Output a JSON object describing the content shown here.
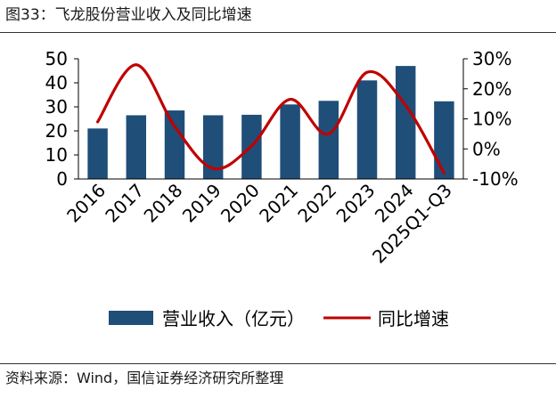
{
  "title": "图33：飞龙股份营业收入及同比增速",
  "source": "资料来源：Wind，国信证券经济研究所整理",
  "colors": {
    "bar": "#1f4e79",
    "line": "#c00000"
  },
  "chart_data": {
    "type": "bar+line",
    "categories": [
      "2016",
      "2017",
      "2018",
      "2019",
      "2020",
      "2021",
      "2022",
      "2023",
      "2024",
      "2025Q1-Q3"
    ],
    "series": [
      {
        "name": "营业收入（亿元）",
        "type": "bar",
        "axis": "left",
        "values": [
          21,
          26.5,
          28.5,
          26.5,
          26.7,
          31,
          32.5,
          41,
          47,
          32.3
        ]
      },
      {
        "name": "同比增速",
        "type": "line",
        "axis": "right",
        "values": [
          9,
          28,
          7.5,
          -6.5,
          1,
          16.5,
          5,
          25.5,
          14.5,
          -8
        ]
      }
    ],
    "left_axis": {
      "min": 0,
      "max": 50,
      "ticks": [
        "0",
        "10",
        "20",
        "30",
        "40",
        "50"
      ]
    },
    "right_axis": {
      "min": -10,
      "max": 30,
      "ticks": [
        "-10%",
        "0%",
        "10%",
        "20%",
        "30%"
      ]
    },
    "legend": [
      "营业收入（亿元）",
      "同比增速"
    ]
  }
}
